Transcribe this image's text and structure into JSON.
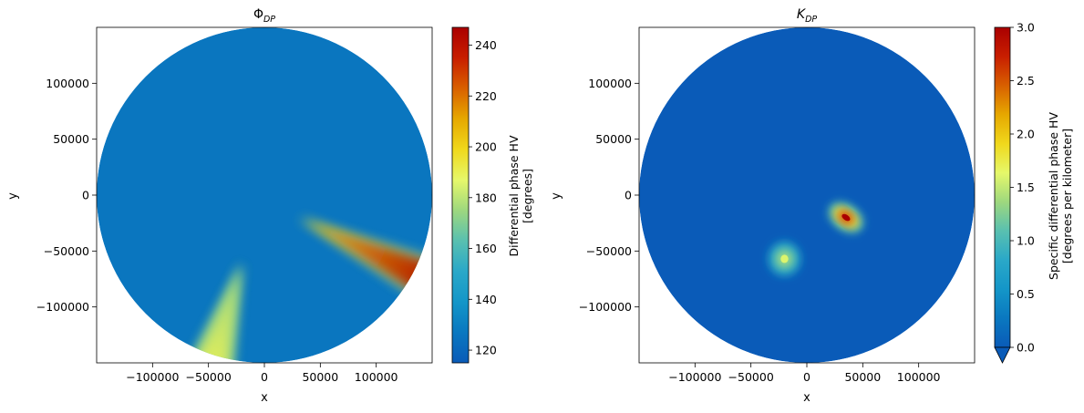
{
  "chart_data": [
    {
      "type": "heatmap",
      "title_main": "Φ",
      "title_sub": "DP",
      "xlabel": "x",
      "ylabel": "y",
      "xlim": [
        -150000,
        150000
      ],
      "ylim": [
        -150000,
        150000
      ],
      "xticks": [
        -100000,
        -50000,
        0,
        50000,
        100000
      ],
      "xtick_labels": [
        "−100000",
        "−50000",
        "0",
        "50000",
        "100000"
      ],
      "yticks": [
        -100000,
        -50000,
        0,
        50000,
        100000
      ],
      "ytick_labels": [
        "−100000",
        "−50000",
        "0",
        "50000",
        "100000"
      ],
      "background_value": 126,
      "colorbar": {
        "label_line1": "Differential phase HV",
        "label_line2": "[degrees]",
        "range": [
          115,
          247
        ],
        "ticks": [
          120,
          140,
          160,
          180,
          200,
          220,
          240
        ],
        "tick_labels": [
          "120",
          "140",
          "160",
          "180",
          "200",
          "220",
          "240"
        ],
        "extend_min": false
      },
      "features": [
        {
          "kind": "plume",
          "from": [
            30000,
            -20000
          ],
          "to": [
            145000,
            -75000
          ],
          "value_start": 205,
          "value_end": 247
        },
        {
          "kind": "plume",
          "from": [
            -20000,
            -60000
          ],
          "to": [
            -45000,
            -145000
          ],
          "value_start": 175,
          "value_end": 190
        }
      ],
      "grid": false
    },
    {
      "type": "heatmap",
      "title_main": "K",
      "title_sub": "DP",
      "xlabel": "x",
      "ylabel": "y",
      "xlim": [
        -150000,
        150000
      ],
      "ylim": [
        -150000,
        150000
      ],
      "xticks": [
        -100000,
        -50000,
        0,
        50000,
        100000
      ],
      "xtick_labels": [
        "−100000",
        "−50000",
        "0",
        "50000",
        "100000"
      ],
      "yticks": [
        -100000,
        -50000,
        0,
        50000,
        100000
      ],
      "ytick_labels": [
        "−100000",
        "−50000",
        "0",
        "50000",
        "100000"
      ],
      "background_value": 0.0,
      "colorbar": {
        "label_line1": "Specific differential phase HV",
        "label_line2": "[degrees per kilometer]",
        "range": [
          0.0,
          3.0
        ],
        "ticks": [
          0.0,
          0.5,
          1.0,
          1.5,
          2.0,
          2.5,
          3.0
        ],
        "tick_labels": [
          "0.0",
          "0.5",
          "1.0",
          "1.5",
          "2.0",
          "2.5",
          "3.0"
        ],
        "extend_min": true
      },
      "features": [
        {
          "kind": "blob",
          "center": [
            35000,
            -20000
          ],
          "value": 3.0
        },
        {
          "kind": "blob",
          "center": [
            -20000,
            -57000
          ],
          "value": 1.6
        }
      ],
      "grid": false
    }
  ],
  "colormap_stops": [
    "#0a5bb8",
    "#0a78c0",
    "#1496c8",
    "#2aa8c8",
    "#59c0b0",
    "#9ed87e",
    "#e6f86a",
    "#f0d81c",
    "#e6a800",
    "#d86000",
    "#c81e00",
    "#aa0000"
  ]
}
